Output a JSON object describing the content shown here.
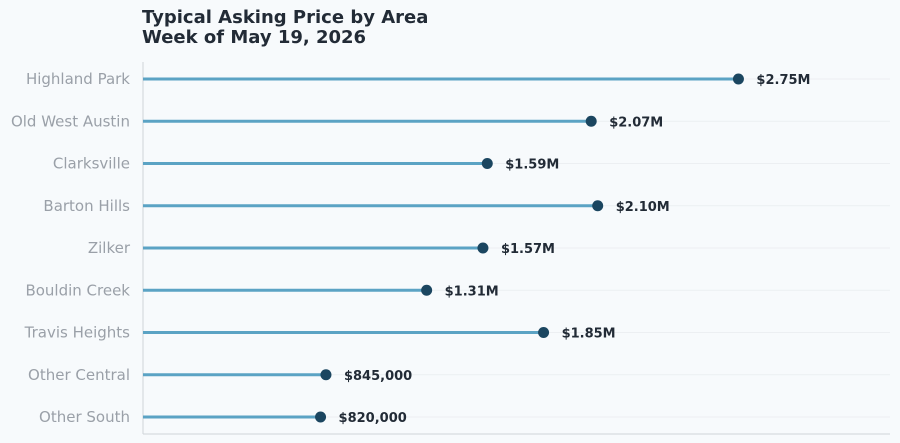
{
  "chart_data": {
    "type": "lollipop",
    "title": "Typical Asking Price by Area",
    "subtitle": "Week of May 19, 2026",
    "categories": [
      "Highland Park",
      "Old West Austin",
      "Clarksville",
      "Barton Hills",
      "Zilker",
      "Bouldin Creek",
      "Travis Heights",
      "Other Central",
      "Other South"
    ],
    "values": [
      2750000,
      2070000,
      1590000,
      2100000,
      1570000,
      1310000,
      1850000,
      845000,
      820000
    ],
    "value_labels": [
      "$2.75M",
      "$2.07M",
      "$1.59M",
      "$2.10M",
      "$1.57M",
      "$1.31M",
      "$1.85M",
      "$845,000",
      "$820,000"
    ],
    "xlim": [
      0,
      3450000
    ],
    "grid": true,
    "colors": {
      "stem": "#5ba3c4",
      "dot": "#1b4660",
      "axis": "#cfd4d9",
      "grid": "#eceff2"
    }
  }
}
